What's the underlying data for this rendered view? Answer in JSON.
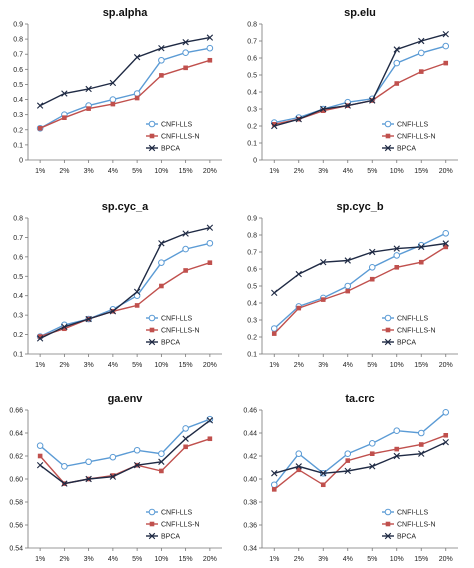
{
  "chart_data": [
    {
      "type": "line",
      "title": "sp.alpha",
      "categories": [
        "1%",
        "2%",
        "3%",
        "4%",
        "5%",
        "10%",
        "15%",
        "20%"
      ],
      "ylim": [
        0,
        0.9
      ],
      "yticks": [
        "0",
        "0.1",
        "0.2",
        "0.3",
        "0.4",
        "0.5",
        "0.6",
        "0.7",
        "0.8",
        "0.9"
      ],
      "ytick_values": [
        0,
        0.1,
        0.2,
        0.3,
        0.4,
        0.5,
        0.6,
        0.7,
        0.8,
        0.9
      ],
      "series": [
        {
          "name": "CNFI-LLS",
          "values": [
            0.21,
            0.3,
            0.36,
            0.4,
            0.44,
            0.66,
            0.71,
            0.74
          ]
        },
        {
          "name": "CNFI-LLS-N",
          "values": [
            0.21,
            0.28,
            0.34,
            0.37,
            0.41,
            0.56,
            0.61,
            0.66
          ]
        },
        {
          "name": "BPCA",
          "values": [
            0.36,
            0.44,
            0.47,
            0.51,
            0.68,
            0.74,
            0.78,
            0.81
          ]
        }
      ],
      "legend": "bottom-right",
      "grid": false
    },
    {
      "type": "line",
      "title": "sp.elu",
      "categories": [
        "1%",
        "2%",
        "3%",
        "4%",
        "5%",
        "10%",
        "15%",
        "20%"
      ],
      "ylim": [
        0,
        0.8
      ],
      "yticks": [
        "0",
        "0.1",
        "0.2",
        "0.3",
        "0.4",
        "0.5",
        "0.6",
        "0.7",
        "0.8"
      ],
      "ytick_values": [
        0,
        0.1,
        0.2,
        0.3,
        0.4,
        0.5,
        0.6,
        0.7,
        0.8
      ],
      "series": [
        {
          "name": "CNFI-LLS",
          "values": [
            0.22,
            0.25,
            0.3,
            0.34,
            0.36,
            0.57,
            0.63,
            0.67
          ]
        },
        {
          "name": "CNFI-LLS-N",
          "values": [
            0.21,
            0.24,
            0.29,
            0.32,
            0.35,
            0.45,
            0.52,
            0.57
          ]
        },
        {
          "name": "BPCA",
          "values": [
            0.2,
            0.24,
            0.3,
            0.32,
            0.35,
            0.65,
            0.7,
            0.74
          ]
        }
      ],
      "legend": "bottom-right",
      "grid": false
    },
    {
      "type": "line",
      "title": "sp.cyc_a",
      "categories": [
        "1%",
        "2%",
        "3%",
        "4%",
        "5%",
        "10%",
        "15%",
        "20%"
      ],
      "ylim": [
        0.1,
        0.8
      ],
      "yticks": [
        "0.1",
        "0.2",
        "0.3",
        "0.4",
        "0.5",
        "0.6",
        "0.7",
        "0.8"
      ],
      "ytick_values": [
        0.1,
        0.2,
        0.3,
        0.4,
        0.5,
        0.6,
        0.7,
        0.8
      ],
      "series": [
        {
          "name": "CNFI-LLS",
          "values": [
            0.19,
            0.25,
            0.28,
            0.33,
            0.4,
            0.57,
            0.64,
            0.67
          ]
        },
        {
          "name": "CNFI-LLS-N",
          "values": [
            0.19,
            0.23,
            0.28,
            0.32,
            0.35,
            0.45,
            0.53,
            0.57
          ]
        },
        {
          "name": "BPCA",
          "values": [
            0.18,
            0.24,
            0.28,
            0.32,
            0.42,
            0.67,
            0.72,
            0.75
          ]
        }
      ],
      "legend": "bottom-right",
      "grid": false
    },
    {
      "type": "line",
      "title": "sp.cyc_b",
      "categories": [
        "1%",
        "2%",
        "3%",
        "4%",
        "5%",
        "10%",
        "15%",
        "20%"
      ],
      "ylim": [
        0.1,
        0.9
      ],
      "yticks": [
        "0.1",
        "0.2",
        "0.3",
        "0.4",
        "0.5",
        "0.6",
        "0.7",
        "0.8",
        "0.9"
      ],
      "ytick_values": [
        0.1,
        0.2,
        0.3,
        0.4,
        0.5,
        0.6,
        0.7,
        0.8,
        0.9
      ],
      "series": [
        {
          "name": "CNFI-LLS",
          "values": [
            0.25,
            0.38,
            0.43,
            0.5,
            0.61,
            0.68,
            0.74,
            0.81
          ]
        },
        {
          "name": "CNFI-LLS-N",
          "values": [
            0.22,
            0.37,
            0.42,
            0.47,
            0.54,
            0.61,
            0.64,
            0.73
          ]
        },
        {
          "name": "BPCA",
          "values": [
            0.46,
            0.57,
            0.64,
            0.65,
            0.7,
            0.72,
            0.73,
            0.75
          ]
        }
      ],
      "legend": "bottom-right",
      "grid": false
    },
    {
      "type": "line",
      "title": "ga.env",
      "categories": [
        "1%",
        "2%",
        "3%",
        "4%",
        "5%",
        "10%",
        "15%",
        "20%"
      ],
      "ylim": [
        0.54,
        0.66
      ],
      "yticks": [
        "0.54",
        "0.56",
        "0.58",
        "0.60",
        "0.62",
        "0.64",
        "0.66"
      ],
      "ytick_values": [
        0.54,
        0.56,
        0.58,
        0.6,
        0.62,
        0.64,
        0.66
      ],
      "series": [
        {
          "name": "CNFI-LLS",
          "values": [
            0.629,
            0.611,
            0.615,
            0.619,
            0.625,
            0.622,
            0.644,
            0.652
          ]
        },
        {
          "name": "CNFI-LLS-N",
          "values": [
            0.62,
            0.596,
            0.6,
            0.603,
            0.612,
            0.607,
            0.628,
            0.635
          ]
        },
        {
          "name": "BPCA",
          "values": [
            0.612,
            0.596,
            0.6,
            0.602,
            0.612,
            0.615,
            0.635,
            0.651
          ]
        }
      ],
      "legend": "bottom-right",
      "grid": false
    },
    {
      "type": "line",
      "title": "ta.crc",
      "categories": [
        "1%",
        "2%",
        "3%",
        "4%",
        "5%",
        "10%",
        "15%",
        "20%"
      ],
      "ylim": [
        0.34,
        0.46
      ],
      "yticks": [
        "0.34",
        "0.36",
        "0.38",
        "0.40",
        "0.42",
        "0.44",
        "0.46"
      ],
      "ytick_values": [
        0.34,
        0.36,
        0.38,
        0.4,
        0.42,
        0.44,
        0.46
      ],
      "series": [
        {
          "name": "CNFI-LLS",
          "values": [
            0.395,
            0.422,
            0.405,
            0.422,
            0.431,
            0.442,
            0.44,
            0.458
          ]
        },
        {
          "name": "CNFI-LLS-N",
          "values": [
            0.391,
            0.408,
            0.395,
            0.416,
            0.422,
            0.426,
            0.43,
            0.438
          ]
        },
        {
          "name": "BPCA",
          "values": [
            0.405,
            0.411,
            0.405,
            0.407,
            0.411,
            0.42,
            0.422,
            0.432
          ]
        }
      ],
      "legend": "bottom-right",
      "grid": false
    }
  ],
  "series_style": {
    "CNFI-LLS": {
      "color": "#5b9bd5",
      "marker": "open-circle-icon"
    },
    "CNFI-LLS-N": {
      "color": "#c0504d",
      "marker": "filled-square-icon"
    },
    "BPCA": {
      "color": "#1f2a44",
      "marker": "x-mark-icon"
    }
  }
}
